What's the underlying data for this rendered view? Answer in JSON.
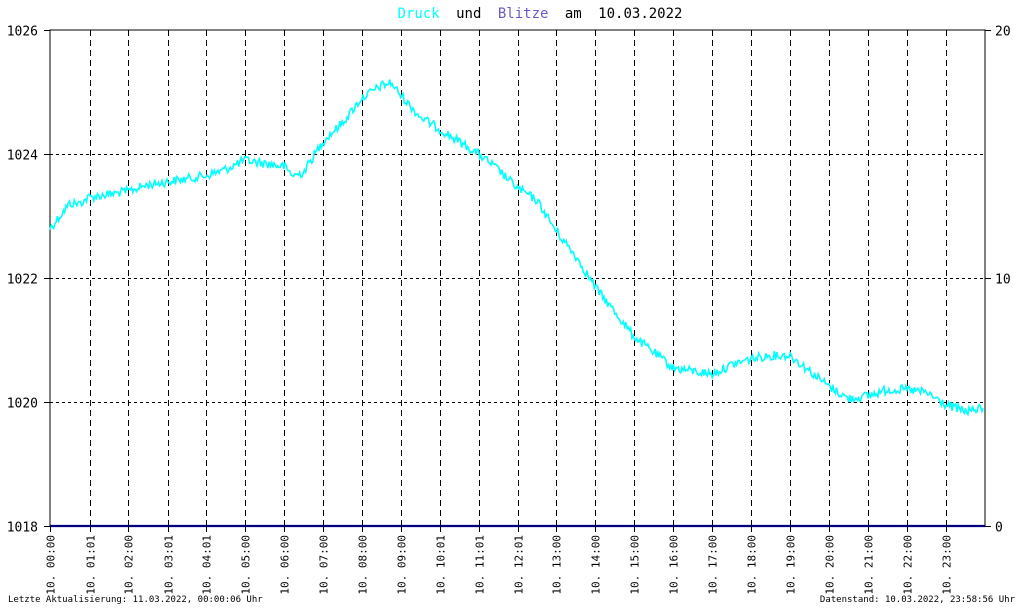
{
  "title": {
    "druck": "Druck",
    "und": "und",
    "blitze": "Blitze",
    "am": "am",
    "date": "10.03.2022"
  },
  "footer": {
    "left": "Letzte Aktualisierung: 11.03.2022, 00:00:06 Uhr",
    "right": "Datenstand: 10.03.2022, 23:58:56 Uhr"
  },
  "colors": {
    "druck": "#00ffff",
    "blitze": "#6a5acd",
    "axis": "#000080",
    "grid": "#000000",
    "background": "#ffffff"
  },
  "chart_data": {
    "type": "line",
    "title": "Druck und Blitze am 10.03.2022",
    "x_tick_labels": [
      "10. 00:00",
      "10. 01:01",
      "10. 02:00",
      "10. 03:01",
      "10. 04:01",
      "10. 05:00",
      "10. 06:00",
      "10. 07:00",
      "10. 08:00",
      "10. 09:00",
      "10. 10:01",
      "10. 11:01",
      "10. 12:01",
      "10. 13:00",
      "10. 14:00",
      "10. 15:00",
      "10. 16:00",
      "10. 17:00",
      "10. 18:00",
      "10. 19:00",
      "10. 20:00",
      "10. 21:00",
      "10. 22:00",
      "10. 23:00"
    ],
    "x_tick_hours": [
      0,
      1.017,
      2,
      3.017,
      4.017,
      5,
      6,
      7,
      8,
      9,
      10.017,
      11.017,
      12.017,
      13,
      14,
      15,
      16,
      17,
      18,
      19,
      20,
      21,
      22,
      23
    ],
    "xlim": [
      0,
      24
    ],
    "y_left": {
      "ticks": [
        1018,
        1020,
        1022,
        1024,
        1026
      ],
      "ylim": [
        1018,
        1026
      ]
    },
    "y_right": {
      "ticks": [
        0,
        10,
        20
      ],
      "ylim": [
        0,
        20
      ]
    },
    "grid": true,
    "series": [
      {
        "name": "Druck",
        "axis": "left",
        "x_hours": [
          0,
          0.25,
          0.5,
          0.75,
          1,
          1.5,
          2,
          2.5,
          3,
          3.5,
          4,
          4.5,
          5,
          5.5,
          6,
          6.25,
          6.5,
          7,
          7.5,
          8,
          8.5,
          8.75,
          9,
          9.5,
          10,
          10.5,
          11,
          11.5,
          12,
          12.5,
          13,
          13.5,
          14,
          14.5,
          15,
          15.5,
          16,
          16.5,
          17,
          17.5,
          18,
          18.5,
          19,
          19.5,
          20,
          20.5,
          21,
          21.5,
          22,
          22.5,
          23,
          23.5,
          23.95
        ],
        "values": [
          1022.8,
          1023.0,
          1023.2,
          1023.2,
          1023.3,
          1023.35,
          1023.4,
          1023.5,
          1023.55,
          1023.6,
          1023.65,
          1023.75,
          1023.9,
          1023.85,
          1023.8,
          1023.65,
          1023.7,
          1024.2,
          1024.5,
          1024.9,
          1025.1,
          1025.15,
          1024.95,
          1024.6,
          1024.4,
          1024.2,
          1024.0,
          1023.75,
          1023.45,
          1023.25,
          1022.75,
          1022.35,
          1021.85,
          1021.45,
          1021.05,
          1020.8,
          1020.55,
          1020.5,
          1020.45,
          1020.6,
          1020.7,
          1020.75,
          1020.75,
          1020.5,
          1020.25,
          1020.05,
          1020.1,
          1020.2,
          1020.2,
          1020.15,
          1019.95,
          1019.85,
          1019.9
        ]
      },
      {
        "name": "Blitze",
        "axis": "right",
        "x_hours": [
          0,
          24
        ],
        "values": [
          0,
          0
        ]
      }
    ]
  }
}
